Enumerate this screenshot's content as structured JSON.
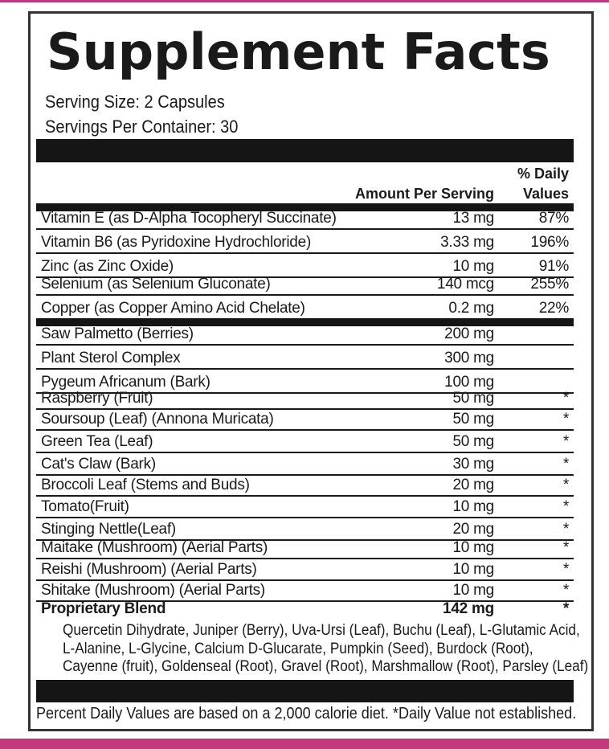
{
  "title": "Supplement Facts",
  "serving_size": "Serving Size: 2 Capsules",
  "servings_per_container": "Servings Per Container: 30",
  "columns": {
    "amount": "Amount Per Serving",
    "daily_values": "% Daily\nValues"
  },
  "vitamin_rows": [
    {
      "name": "Vitamin E (as D-Alpha Tocopheryl Succinate)",
      "amount": "13 mg",
      "dv": "87%"
    },
    {
      "name": "Vitamin B6 (as Pyridoxine Hydrochloride)",
      "amount": "3.33 mg",
      "dv": "196%"
    },
    {
      "name": "Zinc (as Zinc Oxide)",
      "amount": "10 mg",
      "dv": "91%"
    },
    {
      "name": "Selenium (as Selenium Gluconate)",
      "amount": "140 mcg",
      "dv": "255%"
    },
    {
      "name": "Copper (as Copper Amino Acid Chelate)",
      "amount": "0.2 mg",
      "dv": "22%",
      "noline": true
    }
  ],
  "botanical_rows": [
    {
      "name": "Saw Palmetto (Berries)",
      "amount": "200 mg",
      "dv": ""
    },
    {
      "name": "Plant Sterol Complex",
      "amount": "300 mg",
      "dv": ""
    },
    {
      "name": "Pygeum Africanum (Bark)",
      "amount": "100 mg",
      "dv": ""
    },
    {
      "name": "Raspberry (Fruit)",
      "amount": "50 mg",
      "dv": "*"
    },
    {
      "name": "Soursoup (Leaf) (Annona Muricata)",
      "amount": "50 mg",
      "dv": "*"
    },
    {
      "name": "Green Tea (Leaf)",
      "amount": "50 mg",
      "dv": "*"
    },
    {
      "name": "Cat's Claw (Bark)",
      "amount": "30 mg",
      "dv": "*"
    },
    {
      "name": "Broccoli Leaf (Stems and Buds)",
      "amount": "20 mg",
      "dv": "*"
    },
    {
      "name": "Tomato(Fruit)",
      "amount": "10 mg",
      "dv": "*"
    },
    {
      "name": "Stinging Nettle(Leaf)",
      "amount": "20 mg",
      "dv": "*"
    },
    {
      "name": "Maitake (Mushroom) (Aerial Parts)",
      "amount": "10 mg",
      "dv": "*"
    },
    {
      "name": "Reishi (Mushroom) (Aerial Parts)",
      "amount": "10 mg",
      "dv": "*"
    },
    {
      "name": "Shitake (Mushroom) (Aerial Parts)",
      "amount": "10 mg",
      "dv": "*"
    },
    {
      "name": "Proprietary Blend",
      "amount": "142 mg",
      "dv": "*",
      "bold": true
    }
  ],
  "blend_description_lines": [
    "Quercetin Dihydrate, Juniper (Berry), Uva-Ursi (Leaf), Buchu (Leaf), L-Glutamic Acid,",
    "L-Alanine, L-Glycine, Calcium D-Glucarate, Pumpkin (Seed), Burdock (Root),",
    "Cayenne (fruit), Goldenseal (Root), Gravel (Root), Marshmallow (Root), Parsley (Leaf)"
  ],
  "footnote": "Percent Daily Values are based on a 2,000 calorie diet. *Daily Value not established.",
  "colors": {
    "accent_pink": "#c23a7d",
    "bar_black": "#151515"
  }
}
